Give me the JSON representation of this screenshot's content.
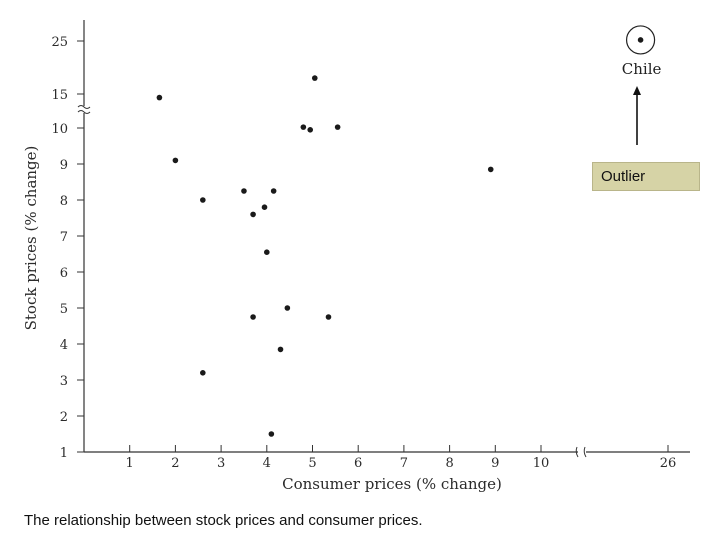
{
  "caption": "The relationship between stock prices and consumer prices.",
  "outlier_label": "Outlier",
  "chart_data": {
    "type": "scatter",
    "title": "",
    "xlabel": "Consumer prices (% change)",
    "ylabel": "Stock prices (% change)",
    "x_ticks": [
      "1",
      "2",
      "3",
      "4",
      "5",
      "6",
      "7",
      "8",
      "9",
      "10",
      "26"
    ],
    "y_ticks": [
      "1",
      "2",
      "3",
      "4",
      "5",
      "6",
      "7",
      "8",
      "9",
      "10",
      "15",
      "25"
    ],
    "x_axis_break": "between 10 and 26",
    "y_axis_break": "between 10 and 15",
    "points": [
      {
        "x": 1.65,
        "y": 14.5
      },
      {
        "x": 2.0,
        "y": 9.1
      },
      {
        "x": 2.6,
        "y": 8.0
      },
      {
        "x": 2.6,
        "y": 3.2
      },
      {
        "x": 3.5,
        "y": 8.25
      },
      {
        "x": 3.7,
        "y": 7.6
      },
      {
        "x": 3.7,
        "y": 4.75
      },
      {
        "x": 3.95,
        "y": 7.8
      },
      {
        "x": 4.0,
        "y": 6.55
      },
      {
        "x": 4.1,
        "y": 1.5
      },
      {
        "x": 4.15,
        "y": 8.25
      },
      {
        "x": 4.3,
        "y": 3.85
      },
      {
        "x": 4.45,
        "y": 5.0
      },
      {
        "x": 4.8,
        "y": 10.4
      },
      {
        "x": 4.95,
        "y": 9.95
      },
      {
        "x": 5.05,
        "y": 18.0
      },
      {
        "x": 5.35,
        "y": 4.75
      },
      {
        "x": 5.55,
        "y": 10.4
      },
      {
        "x": 8.9,
        "y": 8.85
      },
      {
        "x": 25.4,
        "y": 25.2,
        "label": "Chile",
        "outlier": true
      }
    ],
    "grid": false,
    "legend": "none",
    "colors": {
      "points": "#1a1a1a",
      "axes": "#333333",
      "outlier_box": "#d6d3a6"
    }
  }
}
